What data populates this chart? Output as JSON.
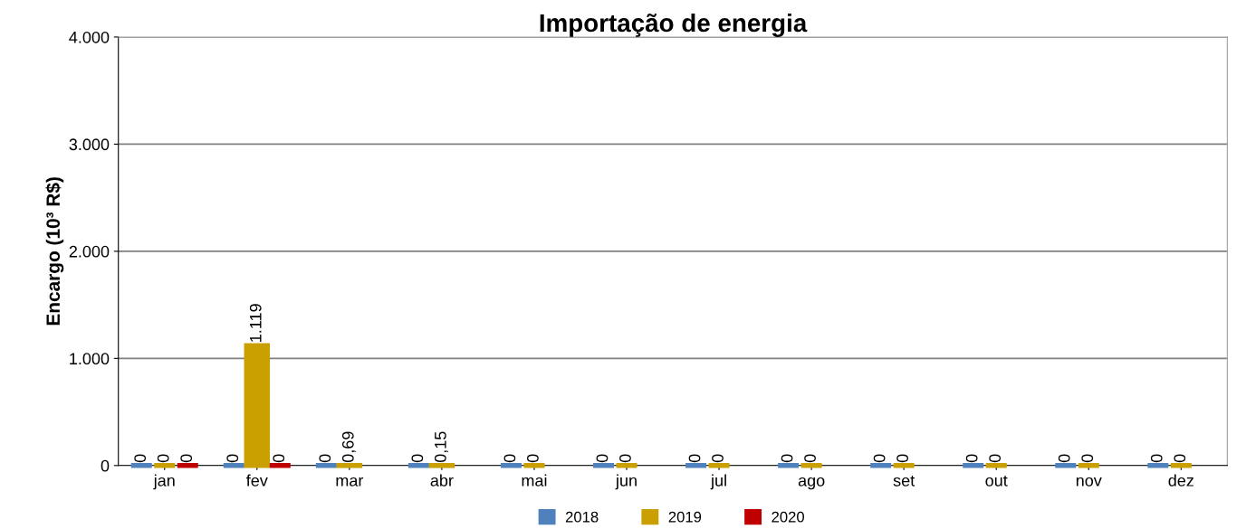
{
  "chart_data": {
    "type": "bar",
    "title": "Importação de energia",
    "ylabel": "Encargo (10³ R$)",
    "categories": [
      "jan",
      "fev",
      "mar",
      "abr",
      "mai",
      "jun",
      "jul",
      "ago",
      "set",
      "out",
      "nov",
      "dez"
    ],
    "series": [
      {
        "name": "2018",
        "color": "#4f81bd",
        "values": [
          0,
          0,
          0,
          0,
          0,
          0,
          0,
          0,
          0,
          0,
          0,
          0
        ],
        "value_labels": [
          "0",
          "0",
          "0",
          "0",
          "0",
          "0",
          "0",
          "0",
          "0",
          "0",
          "0",
          "0"
        ]
      },
      {
        "name": "2019",
        "color": "#c9a000",
        "values": [
          0,
          1119,
          0.69,
          0.15,
          0,
          0,
          0,
          0,
          0,
          0,
          0,
          0
        ],
        "value_labels": [
          "0",
          "1.119",
          "0,69",
          "0,15",
          "0",
          "0",
          "0",
          "0",
          "0",
          "0",
          "0",
          "0"
        ]
      },
      {
        "name": "2020",
        "color": "#c00000",
        "values": [
          0,
          0,
          null,
          null,
          null,
          null,
          null,
          null,
          null,
          null,
          null,
          null
        ],
        "value_labels": [
          "0",
          "0",
          null,
          null,
          null,
          null,
          null,
          null,
          null,
          null,
          null,
          null
        ]
      }
    ],
    "ylim": [
      0,
      4000
    ],
    "yticks": [
      0,
      {
        "value": 1000,
        "label": "1.000"
      },
      {
        "value": 2000,
        "label": "2.000"
      },
      {
        "value": 3000,
        "label": "3.000"
      },
      {
        "value": 4000,
        "label": "4.000"
      }
    ],
    "grid": "y",
    "legend": "bottom"
  }
}
